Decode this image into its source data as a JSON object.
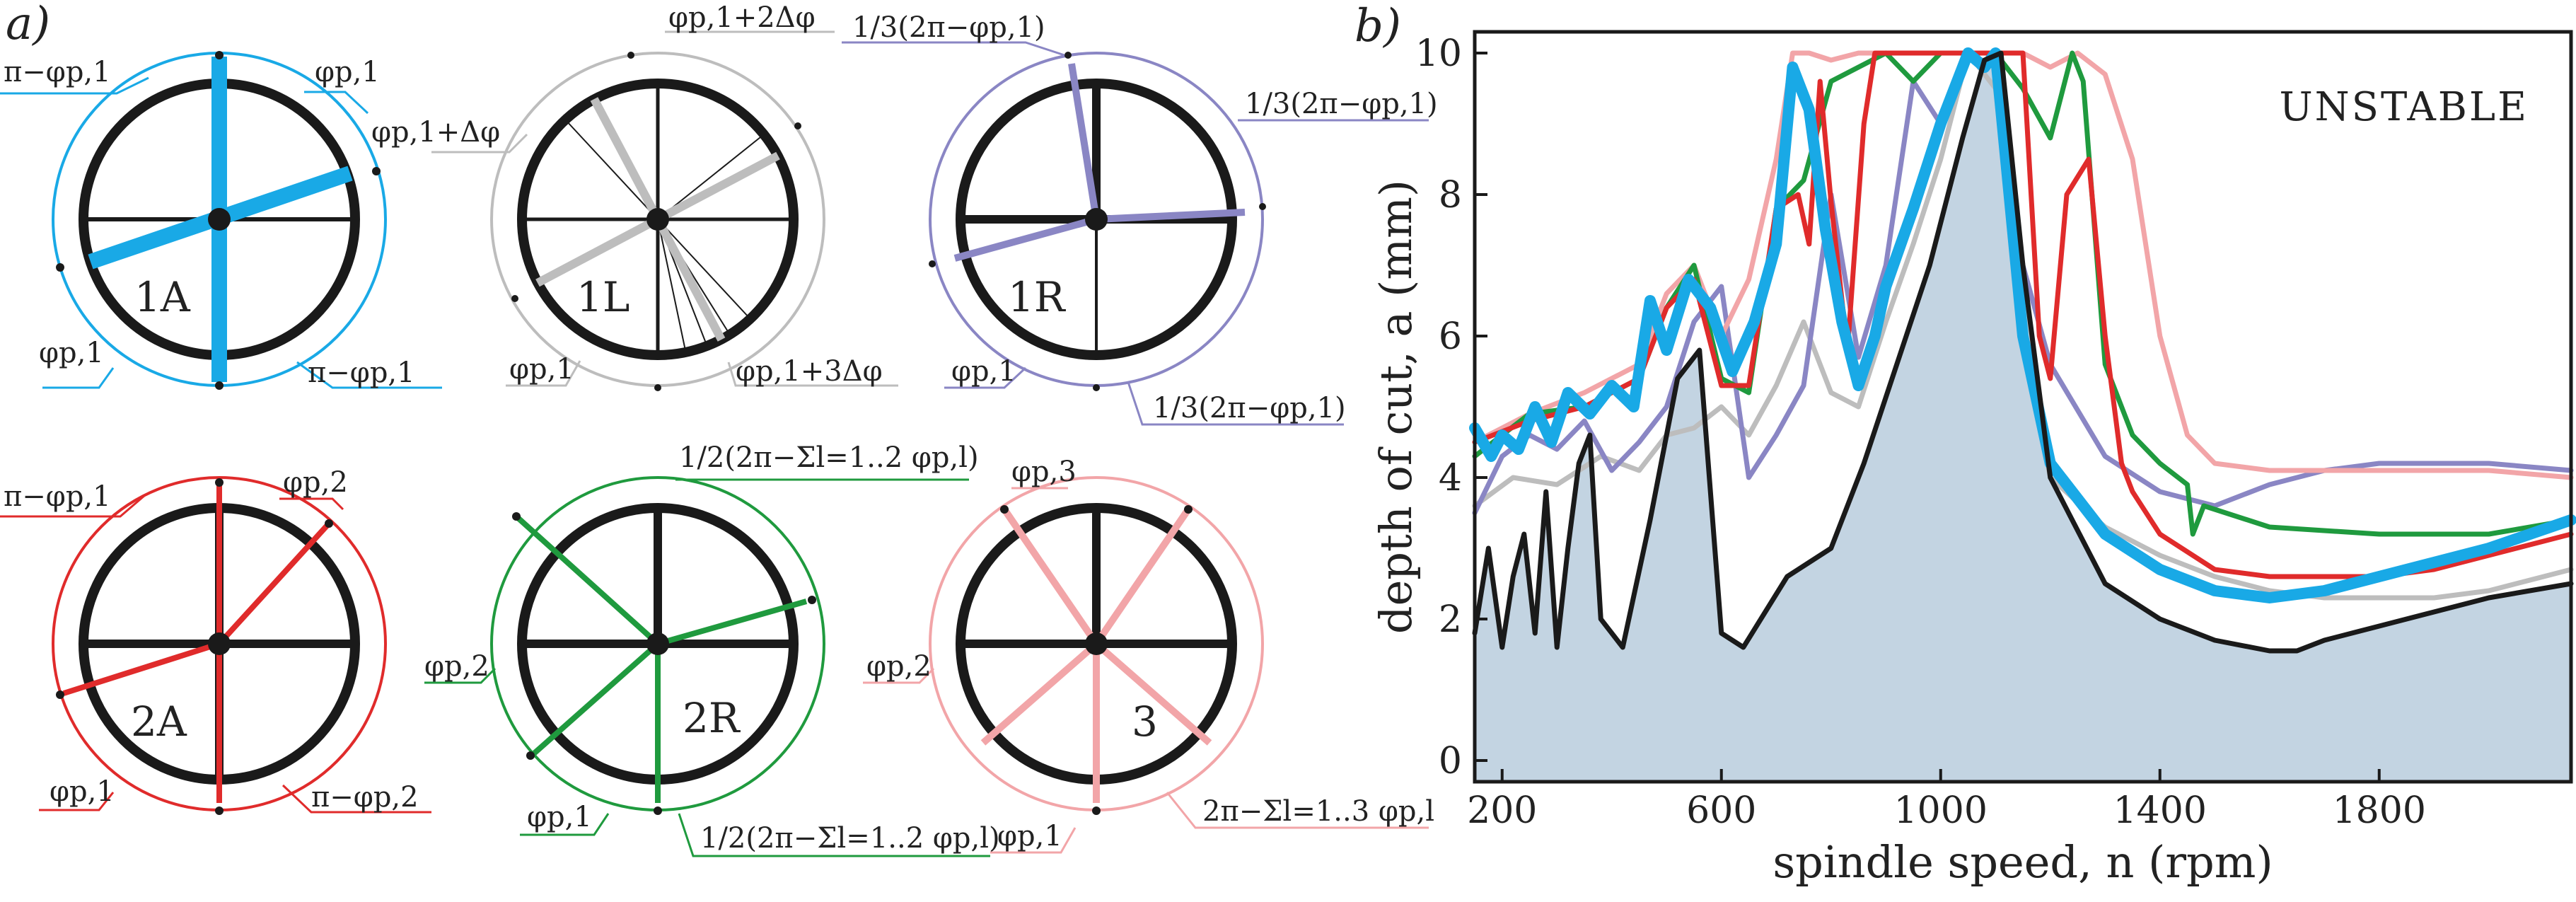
{
  "panel_a_label": "a)",
  "panel_b_label": "b)",
  "wheels": [
    {
      "id": "1A",
      "color": "#19a9e6",
      "label_top_left": "π−φp,1",
      "label_top_right": "φp,1",
      "label_mid_right": "φp,1+Δφ",
      "label_bottom_left": "φp,1",
      "label_bottom_right": "π−φp,1"
    },
    {
      "id": "1L",
      "color": "#bdbdbd",
      "label_top_right": "φp,1+2Δφ",
      "label_bottom_left": "φp,1",
      "label_bottom_right": "φp,1+3Δφ"
    },
    {
      "id": "1R",
      "color": "#8a86c4",
      "label_top_left": "1/3(2π−φp,1)",
      "label_top_right": "1/3(2π−φp,1)",
      "label_bottom_left": "φp,1",
      "label_bottom_right": "1/3(2π−φp,1)"
    },
    {
      "id": "2A",
      "color": "#e02b2b",
      "label_top_left": "π−φp,1",
      "label_top_right": "φp,2",
      "label_bottom_left": "φp,1",
      "label_bottom_right": "π−φp,2"
    },
    {
      "id": "2R",
      "color": "#1f9a3e",
      "label_top": "1/2(2π−Σl=1..2 φp,l)",
      "label_mid_left": "φp,2",
      "label_bottom_left": "φp,1",
      "label_bottom_right": "1/2(2π−Σl=1..2 φp,l)"
    },
    {
      "id": "3",
      "color": "#f2a5a8",
      "label_top": "φp,3",
      "label_mid_left": "φp,2",
      "label_bottom_left": "φp,1",
      "label_bottom_right": "2π−Σl=1..3 φp,l"
    }
  ],
  "chart_data": {
    "type": "line",
    "xlabel": "spindle speed, n (rpm)",
    "ylabel": "depth of cut, a (mm)",
    "annotation": "UNSTABLE",
    "xlim": [
      150,
      2150
    ],
    "ylim": [
      -0.3,
      10.3
    ],
    "xticks": [
      200,
      600,
      1000,
      1400,
      1800
    ],
    "yticks": [
      0,
      2,
      4,
      6,
      8,
      10
    ],
    "stable_fill_color": "#c3d4e2",
    "series": [
      {
        "id": "1L",
        "color": "#bdbdbd",
        "width": 7,
        "x": [
          150,
          220,
          300,
          380,
          450,
          500,
          550,
          600,
          650,
          700,
          750,
          800,
          850,
          900,
          950,
          1000,
          1050,
          1100,
          1150,
          1200,
          1300,
          1400,
          1500,
          1600,
          1700,
          1800,
          1900,
          2000,
          2150
        ],
        "y": [
          3.6,
          4.0,
          3.9,
          4.3,
          4.1,
          4.6,
          4.7,
          5.0,
          4.6,
          5.3,
          6.2,
          5.2,
          5.0,
          6.2,
          7.3,
          8.5,
          10.0,
          9.5,
          6.0,
          4.0,
          3.3,
          2.9,
          2.6,
          2.4,
          2.3,
          2.3,
          2.3,
          2.4,
          2.7
        ]
      },
      {
        "id": "1R",
        "color": "#8a86c4",
        "width": 7,
        "x": [
          150,
          200,
          250,
          300,
          350,
          400,
          450,
          500,
          550,
          600,
          650,
          700,
          750,
          800,
          850,
          900,
          950,
          1000,
          1050,
          1100,
          1150,
          1200,
          1300,
          1400,
          1500,
          1600,
          1700,
          1800,
          1900,
          2000,
          2150
        ],
        "y": [
          3.5,
          4.3,
          4.6,
          4.4,
          4.8,
          4.1,
          4.5,
          5.0,
          6.2,
          6.7,
          4.0,
          4.6,
          5.3,
          8.0,
          5.7,
          7.0,
          9.6,
          9.0,
          10.0,
          9.8,
          7.0,
          5.6,
          4.3,
          3.8,
          3.6,
          3.9,
          4.1,
          4.2,
          4.2,
          4.2,
          4.1
        ]
      },
      {
        "id": "3",
        "color": "#f2a5a8",
        "width": 7,
        "x": [
          150,
          250,
          350,
          450,
          500,
          550,
          600,
          650,
          700,
          730,
          760,
          800,
          850,
          900,
          950,
          1000,
          1050,
          1100,
          1150,
          1200,
          1250,
          1300,
          1350,
          1400,
          1450,
          1500,
          1600,
          1700,
          1800,
          1900,
          2000,
          2150
        ],
        "y": [
          4.5,
          4.9,
          5.2,
          5.6,
          6.6,
          7.0,
          6.0,
          6.8,
          8.5,
          10.0,
          10.0,
          9.9,
          10.0,
          10.0,
          10.0,
          10.0,
          10.0,
          10.0,
          10.0,
          9.8,
          10.0,
          9.7,
          8.5,
          6.0,
          4.6,
          4.2,
          4.1,
          4.1,
          4.1,
          4.1,
          4.1,
          4.0
        ]
      },
      {
        "id": "2R",
        "color": "#1f9a3e",
        "width": 7,
        "x": [
          150,
          250,
          350,
          450,
          500,
          550,
          600,
          650,
          700,
          750,
          800,
          850,
          900,
          950,
          1000,
          1050,
          1100,
          1150,
          1200,
          1240,
          1260,
          1300,
          1350,
          1400,
          1450,
          1460,
          1480,
          1600,
          1800,
          2000,
          2150
        ],
        "y": [
          4.3,
          4.9,
          5.0,
          5.4,
          6.4,
          7.0,
          5.4,
          5.2,
          7.8,
          8.2,
          9.6,
          9.8,
          10.0,
          9.6,
          10.0,
          10.0,
          10.0,
          9.5,
          8.8,
          10.0,
          9.6,
          5.6,
          4.6,
          4.2,
          3.9,
          3.2,
          3.6,
          3.3,
          3.2,
          3.2,
          3.4
        ]
      },
      {
        "id": "2A",
        "color": "#e02b2b",
        "width": 7,
        "x": [
          150,
          250,
          350,
          450,
          500,
          550,
          600,
          650,
          700,
          740,
          760,
          780,
          800,
          830,
          860,
          880,
          900,
          950,
          1000,
          1050,
          1100,
          1150,
          1180,
          1200,
          1230,
          1270,
          1300,
          1330,
          1350,
          1400,
          1500,
          1600,
          1700,
          1800,
          1900,
          2000,
          2150
        ],
        "y": [
          4.5,
          4.8,
          5.0,
          5.4,
          6.4,
          6.8,
          5.3,
          5.3,
          7.8,
          8.0,
          7.3,
          9.6,
          7.9,
          5.8,
          9.0,
          10.0,
          10.0,
          10.0,
          10.0,
          10.0,
          10.0,
          10.0,
          6.0,
          5.4,
          8.0,
          8.5,
          6.0,
          4.2,
          3.8,
          3.2,
          2.7,
          2.6,
          2.6,
          2.6,
          2.7,
          2.9,
          3.2
        ]
      },
      {
        "id": "1A",
        "color": "#19a9e6",
        "width": 16,
        "x": [
          150,
          180,
          200,
          230,
          260,
          290,
          320,
          360,
          400,
          440,
          470,
          500,
          540,
          580,
          620,
          660,
          700,
          730,
          760,
          790,
          820,
          850,
          880,
          900,
          950,
          1000,
          1050,
          1080,
          1100,
          1150,
          1200,
          1300,
          1400,
          1500,
          1600,
          1700,
          1800,
          1900,
          2000,
          2150
        ],
        "y": [
          4.7,
          4.3,
          4.6,
          4.4,
          5.0,
          4.5,
          5.2,
          4.9,
          5.3,
          5.0,
          6.5,
          5.8,
          6.8,
          6.4,
          5.5,
          6.2,
          7.3,
          9.8,
          9.2,
          7.5,
          6.2,
          5.3,
          6.0,
          6.7,
          7.8,
          9.0,
          10.0,
          9.8,
          10.0,
          6.0,
          4.2,
          3.2,
          2.7,
          2.4,
          2.3,
          2.4,
          2.6,
          2.8,
          3.0,
          3.4
        ]
      },
      {
        "id": "stability-boundary",
        "color": "#1a1a1a",
        "width": 7,
        "x": [
          150,
          175,
          200,
          220,
          240,
          260,
          280,
          300,
          320,
          340,
          360,
          380,
          420,
          470,
          520,
          560,
          600,
          640,
          680,
          720,
          760,
          800,
          860,
          920,
          980,
          1040,
          1080,
          1110,
          1150,
          1200,
          1300,
          1400,
          1500,
          1600,
          1650,
          1700,
          1800,
          1900,
          2000,
          2150
        ],
        "y": [
          1.8,
          3.0,
          1.6,
          2.6,
          3.2,
          1.8,
          3.8,
          1.6,
          3.0,
          4.2,
          4.6,
          2.0,
          1.6,
          3.4,
          5.4,
          5.8,
          1.8,
          1.6,
          2.1,
          2.6,
          2.8,
          3.0,
          4.2,
          5.6,
          7.0,
          8.8,
          9.9,
          10.0,
          7.0,
          4.0,
          2.5,
          2.0,
          1.7,
          1.55,
          1.55,
          1.7,
          1.9,
          2.1,
          2.3,
          2.5
        ]
      }
    ]
  }
}
